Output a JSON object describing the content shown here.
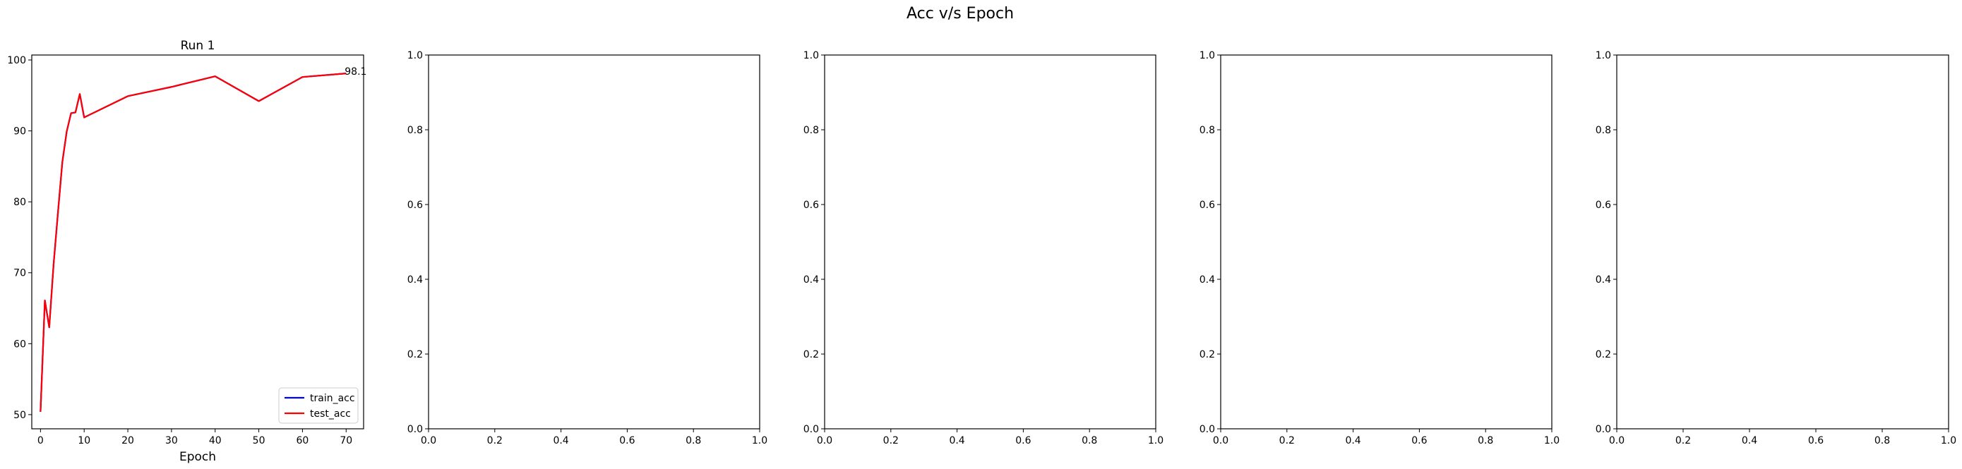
{
  "suptitle": "Acc v/s Epoch",
  "chart_data": [
    {
      "type": "line",
      "title": "Run 1",
      "xlabel": "Epoch",
      "ylabel": "",
      "xlim": [
        -2,
        74
      ],
      "ylim": [
        48,
        100.7
      ],
      "xticks": [
        0,
        10,
        20,
        30,
        40,
        50,
        60,
        70
      ],
      "yticks": [
        50,
        60,
        70,
        80,
        90,
        100
      ],
      "grid": false,
      "legend": "lower right",
      "series": [
        {
          "name": "train_acc",
          "color": "#0000ff",
          "x": [
            0,
            1,
            2,
            3,
            4,
            5,
            6,
            7,
            8,
            9,
            10,
            20,
            30,
            40,
            50,
            60,
            70
          ],
          "y": [
            50.4,
            66.1,
            62.3,
            71.2,
            78.5,
            85.6,
            89.9,
            92.5,
            92.6,
            95.2,
            91.9,
            94.9,
            96.2,
            97.7,
            94.2,
            97.6,
            98.1
          ]
        },
        {
          "name": "test_acc",
          "color": "#ff0000",
          "x": [
            0,
            1,
            2,
            3,
            4,
            5,
            6,
            7,
            8,
            9,
            10,
            20,
            30,
            40,
            50,
            60,
            70
          ],
          "y": [
            50.4,
            66.1,
            62.3,
            71.2,
            78.5,
            85.6,
            89.9,
            92.5,
            92.6,
            95.2,
            91.9,
            94.9,
            96.2,
            97.7,
            94.2,
            97.6,
            98.1
          ]
        }
      ],
      "annotations": [
        {
          "text": "98.1",
          "x": 70,
          "y": 98.1
        }
      ]
    },
    {
      "type": "line",
      "title": "",
      "xlabel": "",
      "ylabel": "",
      "xlim": [
        0,
        1
      ],
      "ylim": [
        0,
        1
      ],
      "xticks": [
        "0.0",
        "0.2",
        "0.4",
        "0.6",
        "0.8",
        "1.0"
      ],
      "yticks": [
        "0.0",
        "0.2",
        "0.4",
        "0.6",
        "0.8",
        "1.0"
      ],
      "grid": false,
      "series": []
    },
    {
      "type": "line",
      "title": "",
      "xlabel": "",
      "ylabel": "",
      "xlim": [
        0,
        1
      ],
      "ylim": [
        0,
        1
      ],
      "xticks": [
        "0.0",
        "0.2",
        "0.4",
        "0.6",
        "0.8",
        "1.0"
      ],
      "yticks": [
        "0.0",
        "0.2",
        "0.4",
        "0.6",
        "0.8",
        "1.0"
      ],
      "grid": false,
      "series": []
    },
    {
      "type": "line",
      "title": "",
      "xlabel": "",
      "ylabel": "",
      "xlim": [
        0,
        1
      ],
      "ylim": [
        0,
        1
      ],
      "xticks": [
        "0.0",
        "0.2",
        "0.4",
        "0.6",
        "0.8",
        "1.0"
      ],
      "yticks": [
        "0.0",
        "0.2",
        "0.4",
        "0.6",
        "0.8",
        "1.0"
      ],
      "grid": false,
      "series": []
    },
    {
      "type": "line",
      "title": "",
      "xlabel": "",
      "ylabel": "",
      "xlim": [
        0,
        1
      ],
      "ylim": [
        0,
        1
      ],
      "xticks": [
        "0.0",
        "0.2",
        "0.4",
        "0.6",
        "0.8",
        "1.0"
      ],
      "yticks": [
        "0.0",
        "0.2",
        "0.4",
        "0.6",
        "0.8",
        "1.0"
      ],
      "grid": false,
      "series": []
    }
  ]
}
